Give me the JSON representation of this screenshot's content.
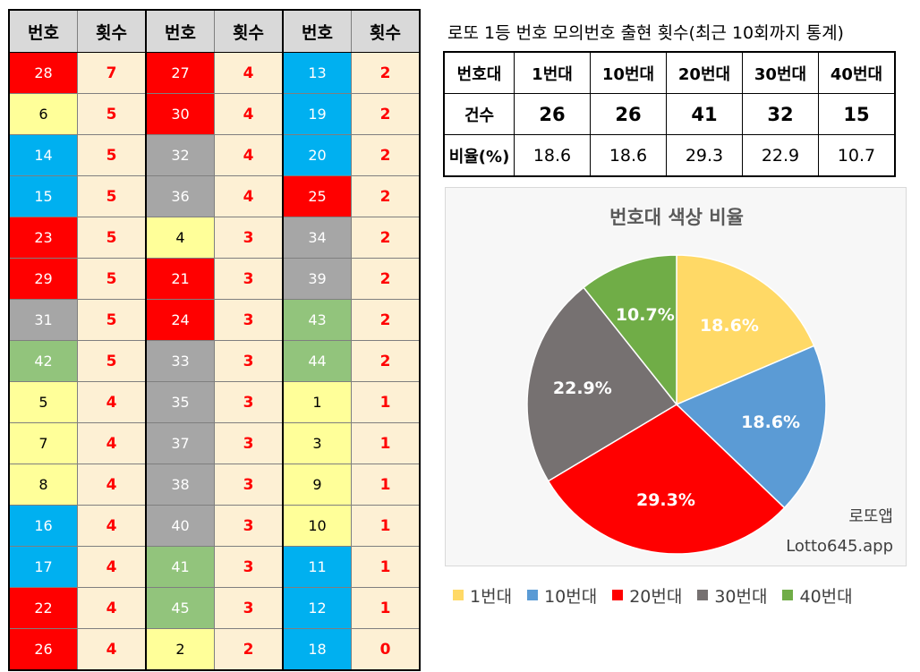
{
  "colors": {
    "yellow": "#ffff99",
    "blue": "#00b0f0",
    "red": "#ff0000",
    "gray": "#a6a6a6",
    "green": "#92c47c"
  },
  "number_table": {
    "headers": [
      "번호",
      "횟수",
      "번호",
      "횟수",
      "번호",
      "횟수"
    ],
    "columns": [
      {
        "numbers": [
          28,
          6,
          14,
          15,
          23,
          29,
          31,
          42,
          5,
          7,
          8,
          16,
          17,
          22,
          26
        ],
        "colors": [
          "red",
          "yellow",
          "blue",
          "blue",
          "red",
          "red",
          "gray",
          "green",
          "yellow",
          "yellow",
          "yellow",
          "blue",
          "blue",
          "red",
          "red"
        ],
        "counts": [
          7,
          5,
          5,
          5,
          5,
          5,
          5,
          5,
          4,
          4,
          4,
          4,
          4,
          4,
          4
        ]
      },
      {
        "numbers": [
          27,
          30,
          32,
          36,
          4,
          21,
          24,
          33,
          35,
          37,
          38,
          40,
          41,
          45,
          2
        ],
        "colors": [
          "red",
          "red",
          "gray",
          "gray",
          "yellow",
          "red",
          "red",
          "gray",
          "gray",
          "gray",
          "gray",
          "gray",
          "green",
          "green",
          "yellow"
        ],
        "counts": [
          4,
          4,
          4,
          4,
          3,
          3,
          3,
          3,
          3,
          3,
          3,
          3,
          3,
          3,
          2
        ]
      },
      {
        "numbers": [
          13,
          19,
          20,
          25,
          34,
          39,
          43,
          44,
          1,
          3,
          9,
          10,
          11,
          12,
          18
        ],
        "colors": [
          "blue",
          "blue",
          "blue",
          "red",
          "gray",
          "gray",
          "green",
          "green",
          "yellow",
          "yellow",
          "yellow",
          "yellow",
          "blue",
          "blue",
          "blue"
        ],
        "counts": [
          2,
          2,
          2,
          2,
          2,
          2,
          2,
          2,
          1,
          1,
          1,
          1,
          1,
          1,
          0
        ]
      }
    ]
  },
  "stats": {
    "title": "로또 1등 번호 모의번호 출현 횟수(최근 10회까지 통계)",
    "header_label": "번호대",
    "ranges": [
      "1번대",
      "10번대",
      "20번대",
      "30번대",
      "40번대"
    ],
    "count_label": "건수",
    "counts": [
      26,
      26,
      41,
      32,
      15
    ],
    "ratio_label": "비율(%)",
    "ratios": [
      "18.6",
      "18.6",
      "29.3",
      "22.9",
      "10.7"
    ]
  },
  "chart_data": {
    "type": "pie",
    "title": "번호대 색상 비율",
    "categories": [
      "1번대",
      "10번대",
      "20번대",
      "30번대",
      "40번대"
    ],
    "values": [
      18.6,
      18.6,
      29.3,
      22.9,
      10.7
    ],
    "labels": [
      "18.6%",
      "18.6%",
      "29.3%",
      "22.9%",
      "10.7%"
    ],
    "colors": [
      "#ffd966",
      "#5b9bd5",
      "#ff0000",
      "#767171",
      "#70ad47"
    ],
    "legend_position": "bottom",
    "start_angle": "12 o'clock",
    "direction": "clockwise"
  },
  "watermark": {
    "line1": "로또앱",
    "line2": "Lotto645.app"
  }
}
